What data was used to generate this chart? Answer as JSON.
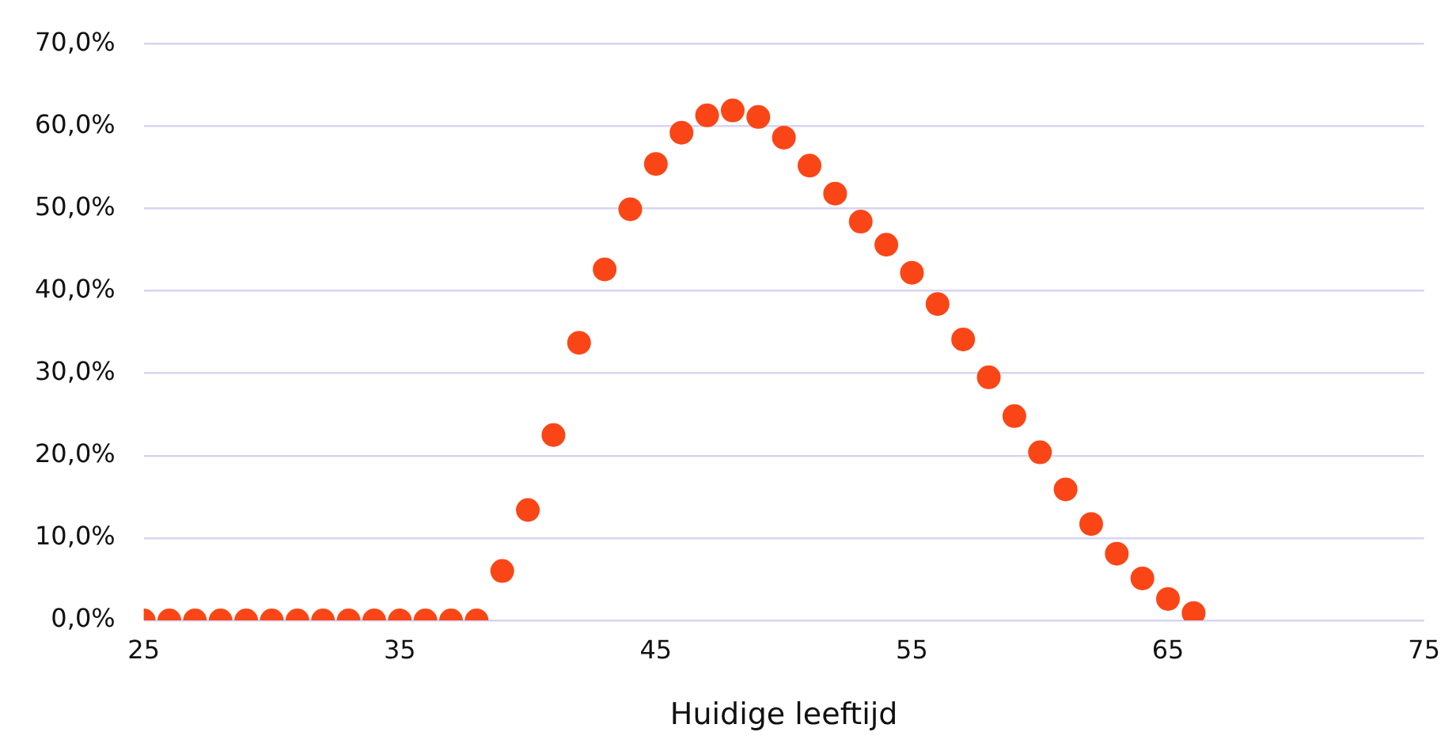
{
  "chart_data": {
    "type": "scatter",
    "xlabel": "Huidige leeftijd",
    "x": [
      25,
      26,
      27,
      28,
      29,
      30,
      31,
      32,
      33,
      34,
      35,
      36,
      37,
      38,
      39,
      40,
      41,
      42,
      43,
      44,
      45,
      46,
      47,
      48,
      49,
      50,
      51,
      52,
      53,
      54,
      55,
      56,
      57,
      58,
      59,
      60,
      61,
      62,
      63,
      64,
      65,
      66
    ],
    "series": [
      {
        "color": "#fa4616",
        "values": [
          0,
          0,
          0,
          0,
          0,
          0,
          0,
          0,
          0,
          0,
          0,
          0,
          0,
          0,
          6.0,
          13.4,
          22.5,
          33.7,
          42.6,
          49.9,
          55.4,
          59.2,
          61.3,
          61.9,
          61.1,
          58.6,
          55.2,
          51.8,
          48.4,
          45.6,
          42.2,
          38.4,
          34.1,
          29.5,
          24.8,
          20.4,
          15.9,
          11.7,
          8.1,
          5.1,
          2.6,
          0.9
        ]
      }
    ],
    "xlim": [
      25,
      75
    ],
    "xticks": [
      25,
      35,
      45,
      55,
      65,
      75
    ],
    "ylim": [
      0,
      70
    ],
    "yticks": [
      {
        "value": 0,
        "label": "0,0%"
      },
      {
        "value": 10,
        "label": "10,0%"
      },
      {
        "value": 20,
        "label": "20,0%"
      },
      {
        "value": 30,
        "label": "30,0%"
      },
      {
        "value": 40,
        "label": "40,0%"
      },
      {
        "value": 50,
        "label": "50,0%"
      },
      {
        "value": 60,
        "label": "60,0%"
      },
      {
        "value": 70,
        "label": "70,0%"
      }
    ],
    "grid": "y",
    "legend": false,
    "marker": "circle"
  }
}
